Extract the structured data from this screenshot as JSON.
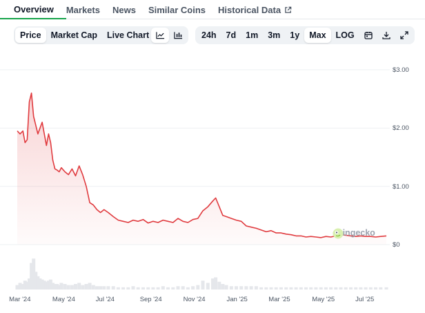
{
  "tabs": [
    {
      "label": "Overview",
      "active": true
    },
    {
      "label": "Markets"
    },
    {
      "label": "News"
    },
    {
      "label": "Similar Coins"
    },
    {
      "label": "Historical Data",
      "external": true
    }
  ],
  "toolbar": {
    "metric_tabs": [
      {
        "label": "Price",
        "selected": true
      },
      {
        "label": "Market Cap"
      },
      {
        "label": "Live Chart",
        "external": true
      }
    ],
    "chart_type_icons": [
      "line-chart-icon",
      "candlestick-chart-icon"
    ],
    "ranges": [
      {
        "label": "24h"
      },
      {
        "label": "7d"
      },
      {
        "label": "1m"
      },
      {
        "label": "3m"
      },
      {
        "label": "1y"
      },
      {
        "label": "Max",
        "selected": true
      },
      {
        "label": "LOG"
      }
    ],
    "action_icons": [
      "calendar-icon",
      "download-icon",
      "expand-icon"
    ]
  },
  "watermark": "coingecko",
  "colors": {
    "line": "#e03a3e",
    "accent": "#16a34a",
    "volume": "#e5e7eb"
  },
  "chart_data": {
    "type": "area",
    "ylim": [
      0,
      3.0
    ],
    "ytick_labels": [
      "$3.00",
      "$2.00",
      "$1.00",
      "$0"
    ],
    "ytick_values": [
      3,
      2,
      1,
      0
    ],
    "xtick_labels": [
      "Mar '24",
      "May '24",
      "Jul '24",
      "Sep '24",
      "Nov '24",
      "Jan '25",
      "Mar '25",
      "May '25",
      "Jul '25"
    ],
    "xtick_dates": [
      "2024-03-01",
      "2024-05-01",
      "2024-07-01",
      "2024-09-01",
      "2024-11-01",
      "2025-01-01",
      "2025-03-01",
      "2025-05-01",
      "2025-07-01"
    ],
    "xlim": [
      "2024-02-28",
      "2025-07-31"
    ],
    "series": [
      {
        "x": [
          "2024-02-28",
          "2024-03-03",
          "2024-03-07",
          "2024-03-10",
          "2024-03-13",
          "2024-03-16",
          "2024-03-19",
          "2024-03-22",
          "2024-03-25",
          "2024-03-28",
          "2024-03-31",
          "2024-04-03",
          "2024-04-06",
          "2024-04-09",
          "2024-04-12",
          "2024-04-15",
          "2024-04-18",
          "2024-04-21",
          "2024-04-24",
          "2024-04-27",
          "2024-04-30",
          "2024-05-05",
          "2024-05-10",
          "2024-05-15",
          "2024-05-20",
          "2024-05-25",
          "2024-05-30",
          "2024-06-04",
          "2024-06-09",
          "2024-06-14",
          "2024-06-19",
          "2024-06-24",
          "2024-06-29",
          "2024-07-05",
          "2024-07-12",
          "2024-07-19",
          "2024-07-26",
          "2024-08-02",
          "2024-08-09",
          "2024-08-16",
          "2024-08-23",
          "2024-08-30",
          "2024-09-06",
          "2024-09-13",
          "2024-09-20",
          "2024-09-27",
          "2024-10-04",
          "2024-10-11",
          "2024-10-18",
          "2024-10-25",
          "2024-11-01",
          "2024-11-08",
          "2024-11-15",
          "2024-11-22",
          "2024-11-29",
          "2024-12-03",
          "2024-12-08",
          "2024-12-13",
          "2024-12-18",
          "2024-12-25",
          "2025-01-01",
          "2025-01-08",
          "2025-01-15",
          "2025-01-22",
          "2025-01-29",
          "2025-02-05",
          "2025-02-12",
          "2025-02-19",
          "2025-02-26",
          "2025-03-05",
          "2025-03-12",
          "2025-03-19",
          "2025-03-26",
          "2025-04-02",
          "2025-04-09",
          "2025-04-16",
          "2025-04-23",
          "2025-04-30",
          "2025-05-07",
          "2025-05-14",
          "2025-05-21",
          "2025-05-28",
          "2025-06-04",
          "2025-06-11",
          "2025-06-18",
          "2025-06-25",
          "2025-07-02",
          "2025-07-09",
          "2025-07-16",
          "2025-07-23",
          "2025-07-31"
        ],
        "y": [
          1.95,
          1.9,
          1.95,
          1.75,
          1.8,
          2.45,
          2.6,
          2.2,
          2.05,
          1.9,
          2.0,
          2.1,
          1.9,
          1.7,
          1.9,
          1.75,
          1.45,
          1.3,
          1.28,
          1.25,
          1.32,
          1.25,
          1.2,
          1.3,
          1.18,
          1.35,
          1.2,
          1.0,
          0.72,
          0.68,
          0.6,
          0.55,
          0.6,
          0.55,
          0.48,
          0.42,
          0.4,
          0.38,
          0.42,
          0.4,
          0.43,
          0.37,
          0.4,
          0.38,
          0.42,
          0.4,
          0.38,
          0.45,
          0.4,
          0.38,
          0.43,
          0.45,
          0.58,
          0.65,
          0.75,
          0.8,
          0.65,
          0.5,
          0.48,
          0.45,
          0.42,
          0.4,
          0.32,
          0.3,
          0.28,
          0.25,
          0.22,
          0.24,
          0.2,
          0.2,
          0.18,
          0.17,
          0.15,
          0.15,
          0.13,
          0.14,
          0.13,
          0.12,
          0.14,
          0.13,
          0.15,
          0.17,
          0.16,
          0.15,
          0.14,
          0.15,
          0.14,
          0.14,
          0.13,
          0.14,
          0.15
        ]
      }
    ],
    "volume_max": 3.0,
    "volume": [
      0.4,
      0.6,
      0.5,
      0.8,
      0.7,
      1.0,
      2.4,
      2.8,
      1.6,
      1.2,
      1.0,
      0.9,
      0.8,
      0.7,
      0.8,
      0.9,
      0.6,
      0.5,
      0.5,
      0.4,
      0.6,
      0.5,
      0.4,
      0.4,
      0.5,
      0.6,
      0.4,
      0.5,
      0.6,
      0.4,
      0.3,
      0.3,
      0.3,
      0.3,
      0.3,
      0.2,
      0.2,
      0.2,
      0.3,
      0.2,
      0.2,
      0.2,
      0.2,
      0.2,
      0.3,
      0.2,
      0.2,
      0.3,
      0.3,
      0.2,
      0.3,
      0.4,
      0.8,
      0.6,
      1.0,
      1.1,
      0.7,
      0.5,
      0.4,
      0.3,
      0.3,
      0.3,
      0.3,
      0.3,
      0.3,
      0.2,
      0.2,
      0.2,
      0.2,
      0.2,
      0.2,
      0.2,
      0.2,
      0.2,
      0.2,
      0.2,
      0.2,
      0.2,
      0.2,
      0.2,
      0.2,
      0.2,
      0.2,
      0.2,
      0.2,
      0.2,
      0.2,
      0.2,
      0.2,
      0.2,
      0.2
    ]
  }
}
